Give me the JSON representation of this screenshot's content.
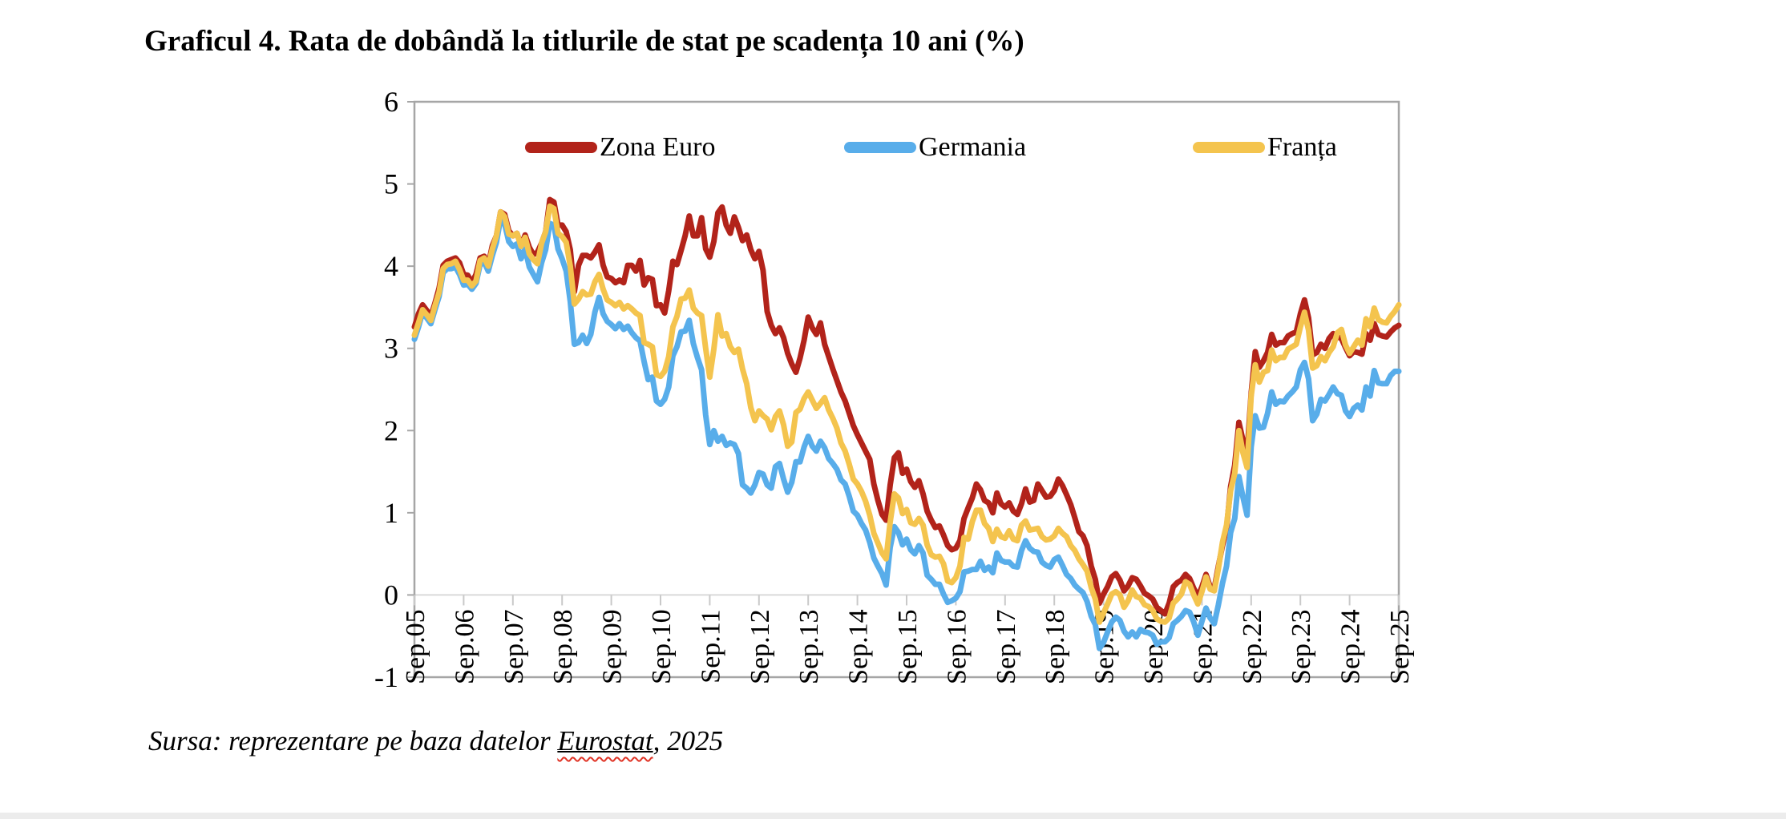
{
  "page": {
    "title": "Graficul 4. Rata de dobândă la titlurile de stat pe scadența 10 ani (%)",
    "source_prefix": "Sursa: reprezentare pe baza datelor ",
    "source_link_text": "Eurostat",
    "source_suffix": ", 2025"
  },
  "colors": {
    "zona_euro": "#B2231A",
    "germania": "#58ADEA",
    "franta": "#F4C44E",
    "plot_border": "#A6A6A6",
    "zero_gridline": "#D9D9D9",
    "axis_tick": "#C9C9C9"
  },
  "chart_data": {
    "type": "line",
    "title": "Graficul 4. Rata de dobândă la titlurile de stat pe scadența 10 ani (%)",
    "xlabel": "",
    "ylabel": "",
    "ylim": [
      -1,
      6
    ],
    "y_ticks": [
      6,
      5,
      4,
      3,
      2,
      1,
      0,
      -1
    ],
    "y_gridline_at": 0,
    "grid": "single horizontal gridline at 0",
    "legend_position": "top-inside",
    "x_unit": "monthly, Sep 2005 - Sep 2025, 241 points per series",
    "x_labels": [
      "Sep.05",
      "Sep.06",
      "Sep.07",
      "Sep.08",
      "Sep.09",
      "Sep.10",
      "Sep.11",
      "Sep.12",
      "Sep.13",
      "Sep.14",
      "Sep.15",
      "Sep.16",
      "Sep.17",
      "Sep.18",
      "Sep.19",
      "Sep.20",
      "Sep.21",
      "Sep.22",
      "Sep.23",
      "Sep.24",
      "Sep.25"
    ],
    "x_label_month_indices": [
      0,
      12,
      24,
      36,
      48,
      60,
      72,
      84,
      96,
      108,
      120,
      132,
      144,
      156,
      168,
      180,
      192,
      204,
      216,
      228,
      240
    ],
    "series": [
      {
        "name": "Zona Euro",
        "color": "#B2231A",
        "values": [
          3.26,
          3.42,
          3.53,
          3.46,
          3.39,
          3.55,
          3.73,
          4.01,
          4.06,
          4.08,
          4.1,
          4.04,
          3.9,
          3.89,
          3.8,
          3.9,
          4.1,
          4.12,
          4.02,
          4.25,
          4.37,
          4.66,
          4.63,
          4.43,
          4.37,
          4.4,
          4.25,
          4.38,
          4.23,
          4.14,
          4.17,
          4.28,
          4.42,
          4.81,
          4.78,
          4.5,
          4.5,
          4.42,
          4.2,
          3.69,
          4.01,
          4.13,
          4.13,
          4.1,
          4.17,
          4.26,
          4.01,
          3.87,
          3.85,
          3.8,
          3.83,
          3.8,
          4.01,
          4.01,
          3.94,
          4.07,
          3.77,
          3.86,
          3.84,
          3.52,
          3.53,
          3.43,
          3.7,
          4.06,
          4.02,
          4.19,
          4.37,
          4.61,
          4.37,
          4.37,
          4.59,
          4.21,
          4.11,
          4.3,
          4.65,
          4.72,
          4.5,
          4.4,
          4.6,
          4.47,
          4.31,
          4.38,
          4.2,
          4.09,
          4.18,
          3.95,
          3.45,
          3.28,
          3.18,
          3.25,
          3.13,
          2.94,
          2.81,
          2.71,
          2.88,
          3.1,
          3.38,
          3.25,
          3.17,
          3.31,
          3.05,
          2.9,
          2.75,
          2.61,
          2.47,
          2.36,
          2.21,
          2.06,
          1.95,
          1.85,
          1.75,
          1.65,
          1.35,
          1.15,
          0.98,
          0.91,
          1.34,
          1.67,
          1.73,
          1.48,
          1.53,
          1.38,
          1.31,
          1.39,
          1.23,
          1.02,
          0.91,
          0.82,
          0.84,
          0.73,
          0.6,
          0.55,
          0.57,
          0.66,
          0.93,
          1.06,
          1.18,
          1.35,
          1.28,
          1.15,
          1.12,
          1.0,
          1.24,
          1.11,
          1.07,
          1.12,
          1.02,
          0.98,
          1.11,
          1.29,
          1.13,
          1.15,
          1.35,
          1.27,
          1.19,
          1.2,
          1.27,
          1.41,
          1.33,
          1.22,
          1.1,
          0.94,
          0.77,
          0.72,
          0.6,
          0.35,
          0.19,
          -0.1,
          0.01,
          0.1,
          0.22,
          0.26,
          0.18,
          0.05,
          0.11,
          0.21,
          0.19,
          0.11,
          0.02,
          -0.01,
          -0.05,
          -0.15,
          -0.19,
          -0.23,
          -0.1,
          0.1,
          0.15,
          0.18,
          0.25,
          0.2,
          0.08,
          -0.02,
          0.1,
          0.25,
          0.1,
          0.08,
          0.35,
          0.6,
          0.81,
          1.32,
          1.58,
          2.1,
          1.88,
          1.72,
          2.45,
          2.96,
          2.77,
          2.85,
          2.95,
          3.17,
          3.04,
          3.07,
          3.07,
          3.15,
          3.18,
          3.2,
          3.42,
          3.59,
          3.37,
          2.92,
          2.95,
          3.05,
          3.0,
          3.12,
          3.18,
          3.14,
          3.12,
          3.01,
          2.91,
          2.96,
          2.95,
          2.93,
          3.18,
          3.1,
          3.3,
          3.17,
          3.15,
          3.14,
          3.2,
          3.25,
          3.28
        ]
      },
      {
        "name": "Germania",
        "color": "#58ADEA",
        "values": [
          3.11,
          3.26,
          3.44,
          3.37,
          3.3,
          3.47,
          3.63,
          3.92,
          3.97,
          3.97,
          3.99,
          3.9,
          3.77,
          3.78,
          3.72,
          3.79,
          4.02,
          4.05,
          3.94,
          4.13,
          4.29,
          4.58,
          4.51,
          4.3,
          4.24,
          4.27,
          4.09,
          4.21,
          3.99,
          3.9,
          3.81,
          4.04,
          4.2,
          4.52,
          4.5,
          4.21,
          4.09,
          3.94,
          3.57,
          3.05,
          3.07,
          3.16,
          3.06,
          3.17,
          3.44,
          3.62,
          3.42,
          3.33,
          3.29,
          3.24,
          3.3,
          3.23,
          3.27,
          3.19,
          3.13,
          3.09,
          2.84,
          2.62,
          2.65,
          2.36,
          2.32,
          2.38,
          2.53,
          2.91,
          3.02,
          3.2,
          3.21,
          3.34,
          3.06,
          2.89,
          2.74,
          2.19,
          1.83,
          2.0,
          1.87,
          1.93,
          1.82,
          1.85,
          1.83,
          1.72,
          1.34,
          1.3,
          1.24,
          1.34,
          1.49,
          1.47,
          1.34,
          1.3,
          1.56,
          1.6,
          1.41,
          1.25,
          1.37,
          1.62,
          1.62,
          1.8,
          1.93,
          1.81,
          1.75,
          1.87,
          1.79,
          1.66,
          1.6,
          1.53,
          1.4,
          1.35,
          1.2,
          1.02,
          0.97,
          0.87,
          0.79,
          0.64,
          0.45,
          0.35,
          0.26,
          0.12,
          0.58,
          0.83,
          0.76,
          0.61,
          0.68,
          0.55,
          0.5,
          0.6,
          0.51,
          0.24,
          0.19,
          0.13,
          0.13,
          0.01,
          -0.09,
          -0.07,
          -0.04,
          0.04,
          0.28,
          0.29,
          0.31,
          0.31,
          0.41,
          0.3,
          0.34,
          0.27,
          0.51,
          0.42,
          0.4,
          0.4,
          0.35,
          0.34,
          0.54,
          0.66,
          0.57,
          0.53,
          0.52,
          0.4,
          0.36,
          0.34,
          0.43,
          0.46,
          0.36,
          0.25,
          0.2,
          0.12,
          0.07,
          0.03,
          -0.08,
          -0.26,
          -0.36,
          -0.65,
          -0.58,
          -0.45,
          -0.33,
          -0.27,
          -0.31,
          -0.44,
          -0.51,
          -0.45,
          -0.51,
          -0.42,
          -0.45,
          -0.46,
          -0.49,
          -0.6,
          -0.57,
          -0.57,
          -0.52,
          -0.35,
          -0.31,
          -0.26,
          -0.19,
          -0.21,
          -0.33,
          -0.49,
          -0.32,
          -0.16,
          -0.28,
          -0.35,
          -0.12,
          0.14,
          0.35,
          0.76,
          0.93,
          1.44,
          1.19,
          0.97,
          1.8,
          2.18,
          2.03,
          2.04,
          2.21,
          2.47,
          2.32,
          2.36,
          2.35,
          2.42,
          2.47,
          2.53,
          2.74,
          2.83,
          2.63,
          2.12,
          2.2,
          2.38,
          2.36,
          2.44,
          2.53,
          2.45,
          2.43,
          2.24,
          2.17,
          2.27,
          2.31,
          2.25,
          2.53,
          2.42,
          2.73,
          2.58,
          2.57,
          2.57,
          2.67,
          2.72,
          2.72
        ]
      },
      {
        "name": "Franța",
        "color": "#F4C44E",
        "values": [
          3.16,
          3.31,
          3.47,
          3.41,
          3.34,
          3.52,
          3.68,
          3.97,
          4.02,
          4.03,
          4.06,
          3.96,
          3.83,
          3.83,
          3.76,
          3.82,
          4.07,
          4.1,
          4.0,
          4.21,
          4.37,
          4.66,
          4.6,
          4.39,
          4.37,
          4.4,
          4.24,
          4.35,
          4.15,
          4.08,
          4.03,
          4.28,
          4.42,
          4.73,
          4.7,
          4.4,
          4.36,
          4.29,
          4.0,
          3.54,
          3.6,
          3.69,
          3.65,
          3.66,
          3.81,
          3.9,
          3.72,
          3.59,
          3.56,
          3.52,
          3.56,
          3.48,
          3.52,
          3.48,
          3.43,
          3.4,
          3.07,
          3.05,
          3.02,
          2.68,
          2.66,
          2.72,
          2.9,
          3.26,
          3.39,
          3.6,
          3.61,
          3.71,
          3.49,
          3.43,
          3.4,
          3.0,
          2.65,
          2.99,
          3.41,
          3.15,
          3.18,
          3.02,
          2.95,
          2.99,
          2.75,
          2.57,
          2.28,
          2.12,
          2.24,
          2.18,
          2.14,
          2.01,
          2.17,
          2.24,
          2.07,
          1.81,
          1.86,
          2.22,
          2.26,
          2.39,
          2.47,
          2.37,
          2.27,
          2.33,
          2.4,
          2.25,
          2.15,
          2.03,
          1.85,
          1.75,
          1.59,
          1.41,
          1.35,
          1.26,
          1.14,
          0.97,
          0.75,
          0.63,
          0.51,
          0.44,
          0.89,
          1.23,
          1.18,
          0.99,
          1.04,
          0.88,
          0.86,
          0.93,
          0.85,
          0.61,
          0.49,
          0.46,
          0.47,
          0.38,
          0.17,
          0.15,
          0.21,
          0.35,
          0.7,
          0.68,
          0.89,
          1.03,
          1.03,
          0.87,
          0.81,
          0.65,
          0.8,
          0.71,
          0.69,
          0.78,
          0.68,
          0.66,
          0.85,
          0.9,
          0.79,
          0.8,
          0.81,
          0.71,
          0.67,
          0.68,
          0.72,
          0.81,
          0.75,
          0.71,
          0.6,
          0.54,
          0.44,
          0.37,
          0.29,
          0.09,
          -0.05,
          -0.33,
          -0.22,
          -0.11,
          0.01,
          0.04,
          0.0,
          -0.15,
          -0.07,
          0.06,
          -0.02,
          -0.04,
          -0.12,
          -0.14,
          -0.19,
          -0.29,
          -0.32,
          -0.33,
          -0.28,
          -0.1,
          -0.05,
          0.01,
          0.16,
          0.13,
          0.0,
          -0.11,
          0.04,
          0.22,
          0.07,
          0.05,
          0.32,
          0.64,
          0.85,
          1.27,
          1.48,
          2.0,
          1.73,
          1.55,
          2.42,
          2.8,
          2.59,
          2.71,
          2.73,
          2.98,
          2.85,
          2.89,
          2.89,
          2.99,
          3.02,
          3.05,
          3.26,
          3.44,
          3.22,
          2.76,
          2.79,
          2.9,
          2.85,
          2.95,
          3.02,
          3.19,
          3.23,
          3.04,
          2.94,
          3.02,
          3.1,
          3.04,
          3.36,
          3.26,
          3.49,
          3.35,
          3.32,
          3.31,
          3.39,
          3.45,
          3.53
        ]
      }
    ]
  }
}
